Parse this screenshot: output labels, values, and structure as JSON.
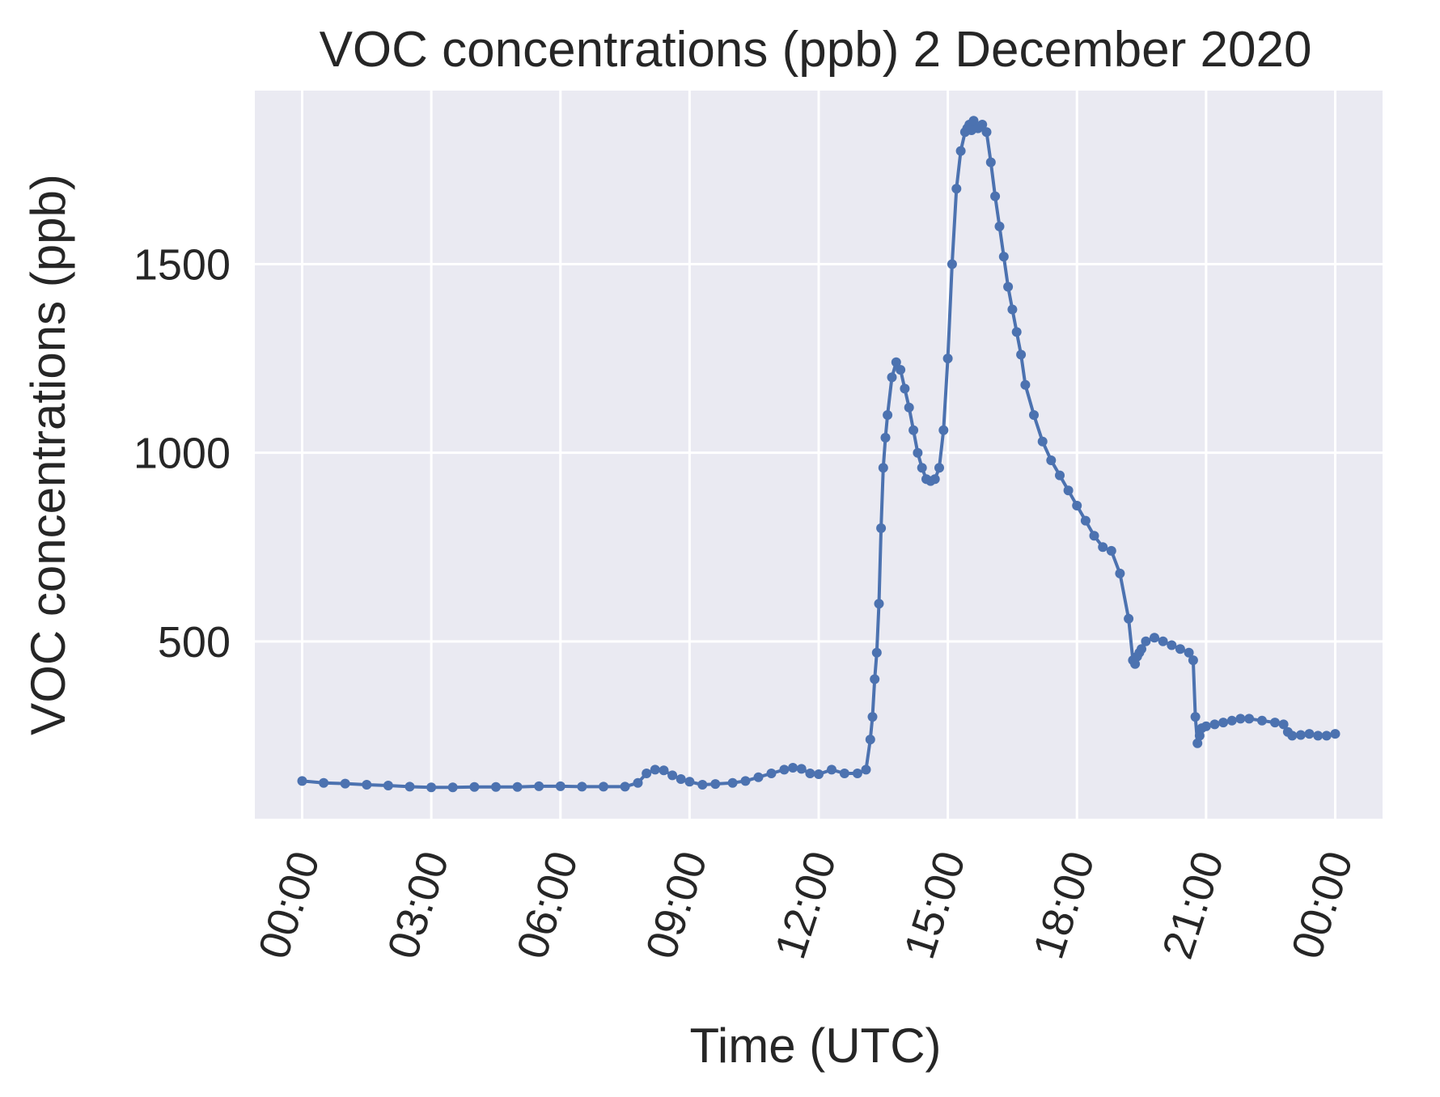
{
  "chart_data": {
    "type": "line",
    "title": "VOC concentrations (ppb) 2 December 2020",
    "xlabel": "Time (UTC)",
    "ylabel": "VOC concentrations (ppb)",
    "x_ticks": [
      "00:00",
      "03:00",
      "06:00",
      "09:00",
      "12:00",
      "15:00",
      "18:00",
      "21:00",
      "00:00"
    ],
    "x_tick_hours": [
      0,
      3,
      6,
      9,
      12,
      15,
      18,
      21,
      24
    ],
    "y_ticks": [
      500,
      1000,
      1500
    ],
    "xlim_hours": [
      -1.1,
      25.1
    ],
    "ylim": [
      30,
      1960
    ],
    "grid": true,
    "background": "#eaeaf2",
    "series_color": "#4c72b0",
    "series": [
      {
        "x_hours": [
          0.0,
          0.5,
          1.0,
          1.5,
          2.0,
          2.5,
          3.0,
          3.5,
          4.0,
          4.5,
          5.0,
          5.5,
          6.0,
          6.5,
          7.0,
          7.5,
          7.8,
          8.0,
          8.2,
          8.4,
          8.6,
          8.8,
          9.0,
          9.3,
          9.6,
          10.0,
          10.3,
          10.6,
          10.9,
          11.2,
          11.4,
          11.6,
          11.8,
          12.0,
          12.3,
          12.6,
          12.9,
          13.1,
          13.2,
          13.25,
          13.3,
          13.35,
          13.4,
          13.45,
          13.5,
          13.55,
          13.6,
          13.7,
          13.8,
          13.9,
          14.0,
          14.1,
          14.2,
          14.3,
          14.4,
          14.5,
          14.6,
          14.7,
          14.8,
          14.9,
          15.0,
          15.1,
          15.2,
          15.3,
          15.4,
          15.45,
          15.5,
          15.55,
          15.6,
          15.7,
          15.8,
          15.9,
          16.0,
          16.1,
          16.2,
          16.3,
          16.4,
          16.5,
          16.6,
          16.7,
          16.8,
          17.0,
          17.2,
          17.4,
          17.6,
          17.8,
          18.0,
          18.2,
          18.4,
          18.6,
          18.8,
          19.0,
          19.2,
          19.3,
          19.35,
          19.4,
          19.45,
          19.5,
          19.6,
          19.8,
          20.0,
          20.2,
          20.4,
          20.6,
          20.7,
          20.75,
          20.8,
          20.85,
          20.9,
          21.0,
          21.2,
          21.4,
          21.6,
          21.8,
          22.0,
          22.3,
          22.6,
          22.8,
          22.9,
          23.0,
          23.2,
          23.4,
          23.6,
          23.8,
          24.0
        ],
        "values": [
          130,
          125,
          123,
          120,
          118,
          115,
          113,
          113,
          114,
          114,
          114,
          116,
          116,
          115,
          115,
          115,
          125,
          150,
          160,
          158,
          145,
          135,
          128,
          120,
          122,
          125,
          130,
          140,
          150,
          160,
          165,
          162,
          150,
          148,
          160,
          150,
          150,
          160,
          240,
          300,
          400,
          470,
          600,
          800,
          960,
          1040,
          1100,
          1200,
          1240,
          1220,
          1170,
          1120,
          1060,
          1000,
          960,
          930,
          925,
          930,
          960,
          1060,
          1250,
          1500,
          1700,
          1800,
          1850,
          1860,
          1870,
          1855,
          1880,
          1860,
          1870,
          1850,
          1770,
          1680,
          1600,
          1520,
          1440,
          1380,
          1320,
          1260,
          1180,
          1100,
          1030,
          980,
          940,
          900,
          860,
          820,
          780,
          750,
          740,
          680,
          560,
          450,
          440,
          460,
          470,
          480,
          500,
          510,
          500,
          490,
          480,
          470,
          450,
          300,
          230,
          250,
          270,
          275,
          280,
          285,
          290,
          295,
          295,
          290,
          285,
          280,
          260,
          250,
          252,
          255,
          250,
          250,
          255
        ]
      }
    ]
  }
}
